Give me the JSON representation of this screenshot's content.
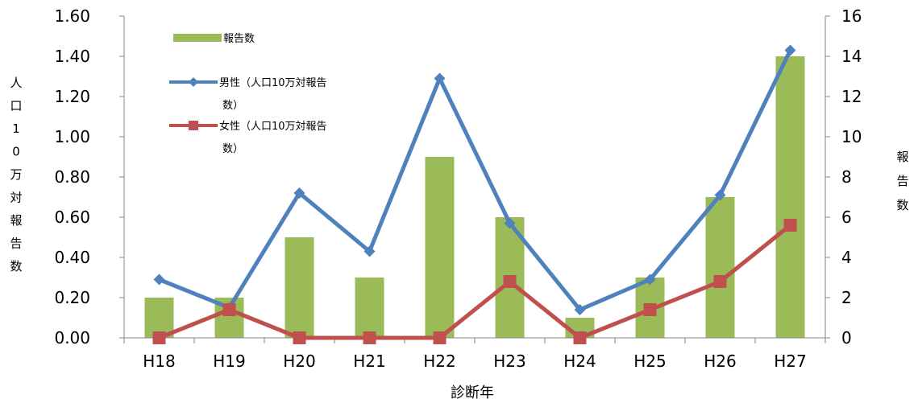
{
  "chart_data": {
    "type": "bar",
    "categories": [
      "H18",
      "H19",
      "H20",
      "H21",
      "H22",
      "H23",
      "H24",
      "H25",
      "H26",
      "H27"
    ],
    "xlabel": "診断年",
    "ylabel_left": [
      "人",
      "口",
      "1",
      "0",
      "万",
      "対",
      "報",
      "告",
      "数"
    ],
    "ylabel_right": [
      "報",
      "告",
      "数"
    ],
    "ylim_left": [
      0,
      1.6
    ],
    "ylim_right": [
      0,
      16
    ],
    "left_ticks": [
      "0.00",
      "0.20",
      "0.40",
      "0.60",
      "0.80",
      "1.00",
      "1.20",
      "1.40",
      "1.60"
    ],
    "right_ticks": [
      "0",
      "2",
      "4",
      "6",
      "8",
      "10",
      "12",
      "14",
      "16"
    ],
    "grid": false,
    "legend_position": "top-left",
    "series": [
      {
        "name": "報告数",
        "type": "bar",
        "axis": "right",
        "color": "#9bbb59",
        "values": [
          2,
          2,
          5,
          3,
          9,
          6,
          1,
          3,
          7,
          14
        ]
      },
      {
        "name": "男性（人口10万対報告数）",
        "legend_lines": [
          "男性（人口10万対報告",
          "数）"
        ],
        "type": "line",
        "marker": "diamond",
        "axis": "left",
        "color": "#4f81bd",
        "values": [
          0.29,
          0.15,
          0.72,
          0.43,
          1.29,
          0.57,
          0.14,
          0.29,
          0.71,
          1.43
        ]
      },
      {
        "name": "女性（人口10万対報告数）",
        "legend_lines": [
          "女性（人口10万対報告",
          "数）"
        ],
        "type": "line",
        "marker": "square",
        "axis": "left",
        "color": "#c0504d",
        "values": [
          0,
          0.14,
          0,
          0,
          0,
          0.28,
          0,
          0.14,
          0.28,
          0.56
        ]
      }
    ]
  }
}
